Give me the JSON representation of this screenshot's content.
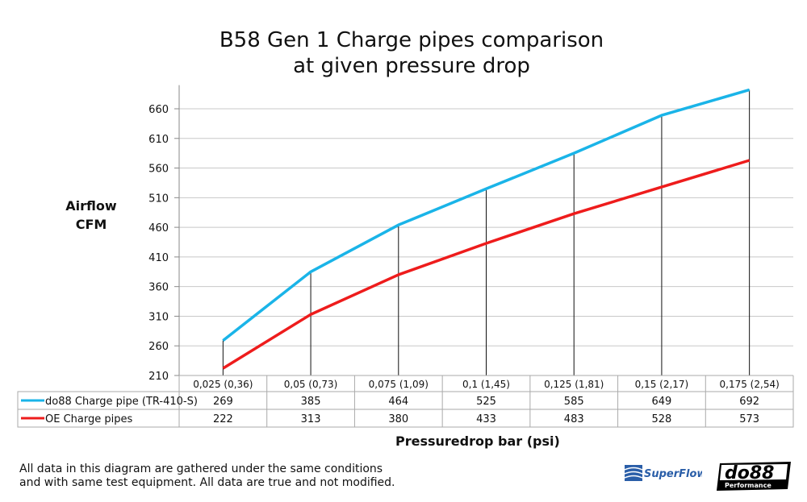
{
  "chart_data": {
    "type": "line",
    "title": "B58 Gen 1 Charge pipes comparison at given pressure drop",
    "title_lines": [
      "B58 Gen 1 Charge pipes comparison",
      "at given pressure drop"
    ],
    "ylabel_lines": [
      "Airflow",
      "CFM"
    ],
    "xlabel": "Pressuredrop bar (psi)",
    "categories": [
      "0,025 (0,36)",
      "0,05 (0,73)",
      "0,075 (1,09)",
      "0,1 (1,45)",
      "0,125 (1,81)",
      "0,15 (2,17)",
      "0,175 (2,54)"
    ],
    "yticks": [
      210,
      260,
      310,
      360,
      410,
      460,
      510,
      560,
      610,
      660
    ],
    "ylim": [
      210,
      700
    ],
    "grid": true,
    "legend": "data-table-below",
    "series": [
      {
        "name": "do88 Charge pipe (TR-410-S)",
        "color": "#1ab4e8",
        "values": [
          269,
          385,
          464,
          525,
          585,
          649,
          692
        ]
      },
      {
        "name": "OE Charge pipes",
        "color": "#ee1c1c",
        "values": [
          222,
          313,
          380,
          433,
          483,
          528,
          573
        ]
      }
    ]
  },
  "footnote": [
    "All data in this diagram are gathered under the same conditions",
    "and with same test equipment. All data are true and not modified."
  ],
  "logos": {
    "superflow": "SuperFlow",
    "do88": "do88",
    "do88_sub": "Performance"
  }
}
